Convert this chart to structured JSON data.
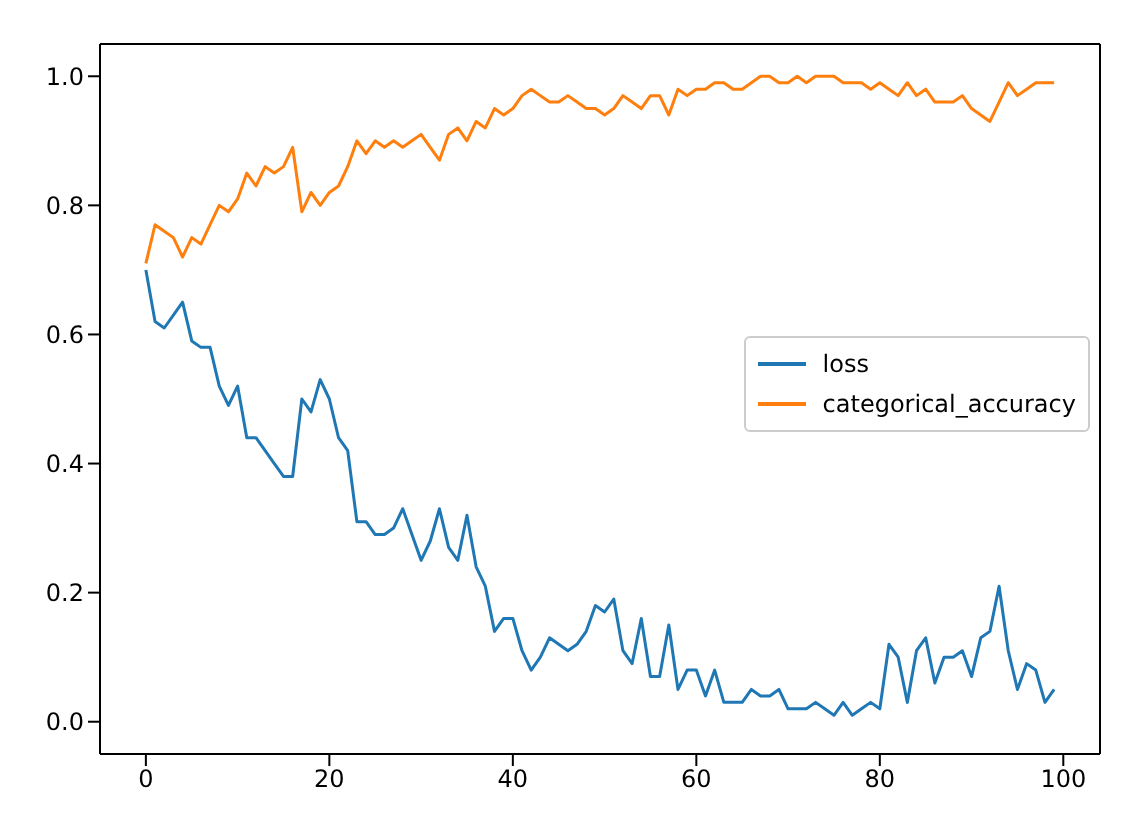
{
  "chart_data": {
    "type": "line",
    "x": [
      0,
      1,
      2,
      3,
      4,
      5,
      6,
      7,
      8,
      9,
      10,
      11,
      12,
      13,
      14,
      15,
      16,
      17,
      18,
      19,
      20,
      21,
      22,
      23,
      24,
      25,
      26,
      27,
      28,
      29,
      30,
      31,
      32,
      33,
      34,
      35,
      36,
      37,
      38,
      39,
      40,
      41,
      42,
      43,
      44,
      45,
      46,
      47,
      48,
      49,
      50,
      51,
      52,
      53,
      54,
      55,
      56,
      57,
      58,
      59,
      60,
      61,
      62,
      63,
      64,
      65,
      66,
      67,
      68,
      69,
      70,
      71,
      72,
      73,
      74,
      75,
      76,
      77,
      78,
      79,
      80,
      81,
      82,
      83,
      84,
      85,
      86,
      87,
      88,
      89,
      90,
      91,
      92,
      93,
      94,
      95,
      96,
      97,
      98,
      99
    ],
    "series": [
      {
        "name": "loss",
        "color": "#1f77b4",
        "values": [
          0.7,
          0.62,
          0.61,
          0.63,
          0.65,
          0.59,
          0.58,
          0.58,
          0.52,
          0.49,
          0.52,
          0.44,
          0.44,
          0.42,
          0.4,
          0.38,
          0.38,
          0.5,
          0.48,
          0.53,
          0.5,
          0.44,
          0.42,
          0.31,
          0.31,
          0.29,
          0.29,
          0.3,
          0.33,
          0.29,
          0.25,
          0.28,
          0.33,
          0.27,
          0.25,
          0.32,
          0.24,
          0.21,
          0.14,
          0.16,
          0.16,
          0.11,
          0.08,
          0.1,
          0.13,
          0.12,
          0.11,
          0.12,
          0.14,
          0.18,
          0.17,
          0.19,
          0.11,
          0.09,
          0.16,
          0.07,
          0.07,
          0.15,
          0.05,
          0.08,
          0.08,
          0.04,
          0.08,
          0.03,
          0.03,
          0.03,
          0.05,
          0.04,
          0.04,
          0.05,
          0.02,
          0.02,
          0.02,
          0.03,
          0.02,
          0.01,
          0.03,
          0.01,
          0.02,
          0.03,
          0.02,
          0.12,
          0.1,
          0.03,
          0.11,
          0.13,
          0.06,
          0.1,
          0.1,
          0.11,
          0.07,
          0.13,
          0.14,
          0.21,
          0.11,
          0.05,
          0.09,
          0.08,
          0.03,
          0.05
        ]
      },
      {
        "name": "categorical_accuracy",
        "color": "#ff7f0e",
        "values": [
          0.71,
          0.77,
          0.76,
          0.75,
          0.72,
          0.75,
          0.74,
          0.77,
          0.8,
          0.79,
          0.81,
          0.85,
          0.83,
          0.86,
          0.85,
          0.86,
          0.89,
          0.79,
          0.82,
          0.8,
          0.82,
          0.83,
          0.86,
          0.9,
          0.88,
          0.9,
          0.89,
          0.9,
          0.89,
          0.9,
          0.91,
          0.89,
          0.87,
          0.91,
          0.92,
          0.9,
          0.93,
          0.92,
          0.95,
          0.94,
          0.95,
          0.97,
          0.98,
          0.97,
          0.96,
          0.96,
          0.97,
          0.96,
          0.95,
          0.95,
          0.94,
          0.95,
          0.97,
          0.96,
          0.95,
          0.97,
          0.97,
          0.94,
          0.98,
          0.97,
          0.98,
          0.98,
          0.99,
          0.99,
          0.98,
          0.98,
          0.99,
          1.0,
          1.0,
          0.99,
          0.99,
          1.0,
          0.99,
          1.0,
          1.0,
          1.0,
          0.99,
          0.99,
          0.99,
          0.98,
          0.99,
          0.98,
          0.97,
          0.99,
          0.97,
          0.98,
          0.96,
          0.96,
          0.96,
          0.97,
          0.95,
          0.94,
          0.93,
          0.96,
          0.99,
          0.97,
          0.98,
          0.99,
          0.99,
          0.99
        ]
      }
    ],
    "xlim": [
      -5,
      104
    ],
    "xticks": [
      0,
      20,
      40,
      60,
      80,
      100
    ],
    "ylim": [
      -0.05,
      1.05
    ],
    "yticks": [
      {
        "value": 0,
        "label": "0.0"
      },
      {
        "value": 0.2,
        "label": "0.2"
      },
      {
        "value": 0.4,
        "label": "0.4"
      },
      {
        "value": 0.6,
        "label": "0.6"
      },
      {
        "value": 0.8,
        "label": "0.8"
      },
      {
        "value": 1,
        "label": "1.0"
      }
    ],
    "legend": "right",
    "grid": false,
    "marker": "none",
    "line_style": "solid"
  }
}
